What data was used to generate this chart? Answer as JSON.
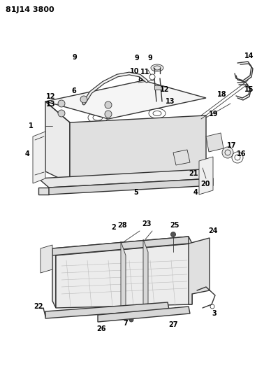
{
  "title": "81J14 3800",
  "bg_color": "#ffffff",
  "line_color": "#333333",
  "text_color": "#000000",
  "title_fontsize": 8,
  "label_fontsize": 7,
  "figsize": [
    3.88,
    5.33
  ],
  "dpi": 100,
  "lw_main": 1.0,
  "lw_thin": 0.6
}
